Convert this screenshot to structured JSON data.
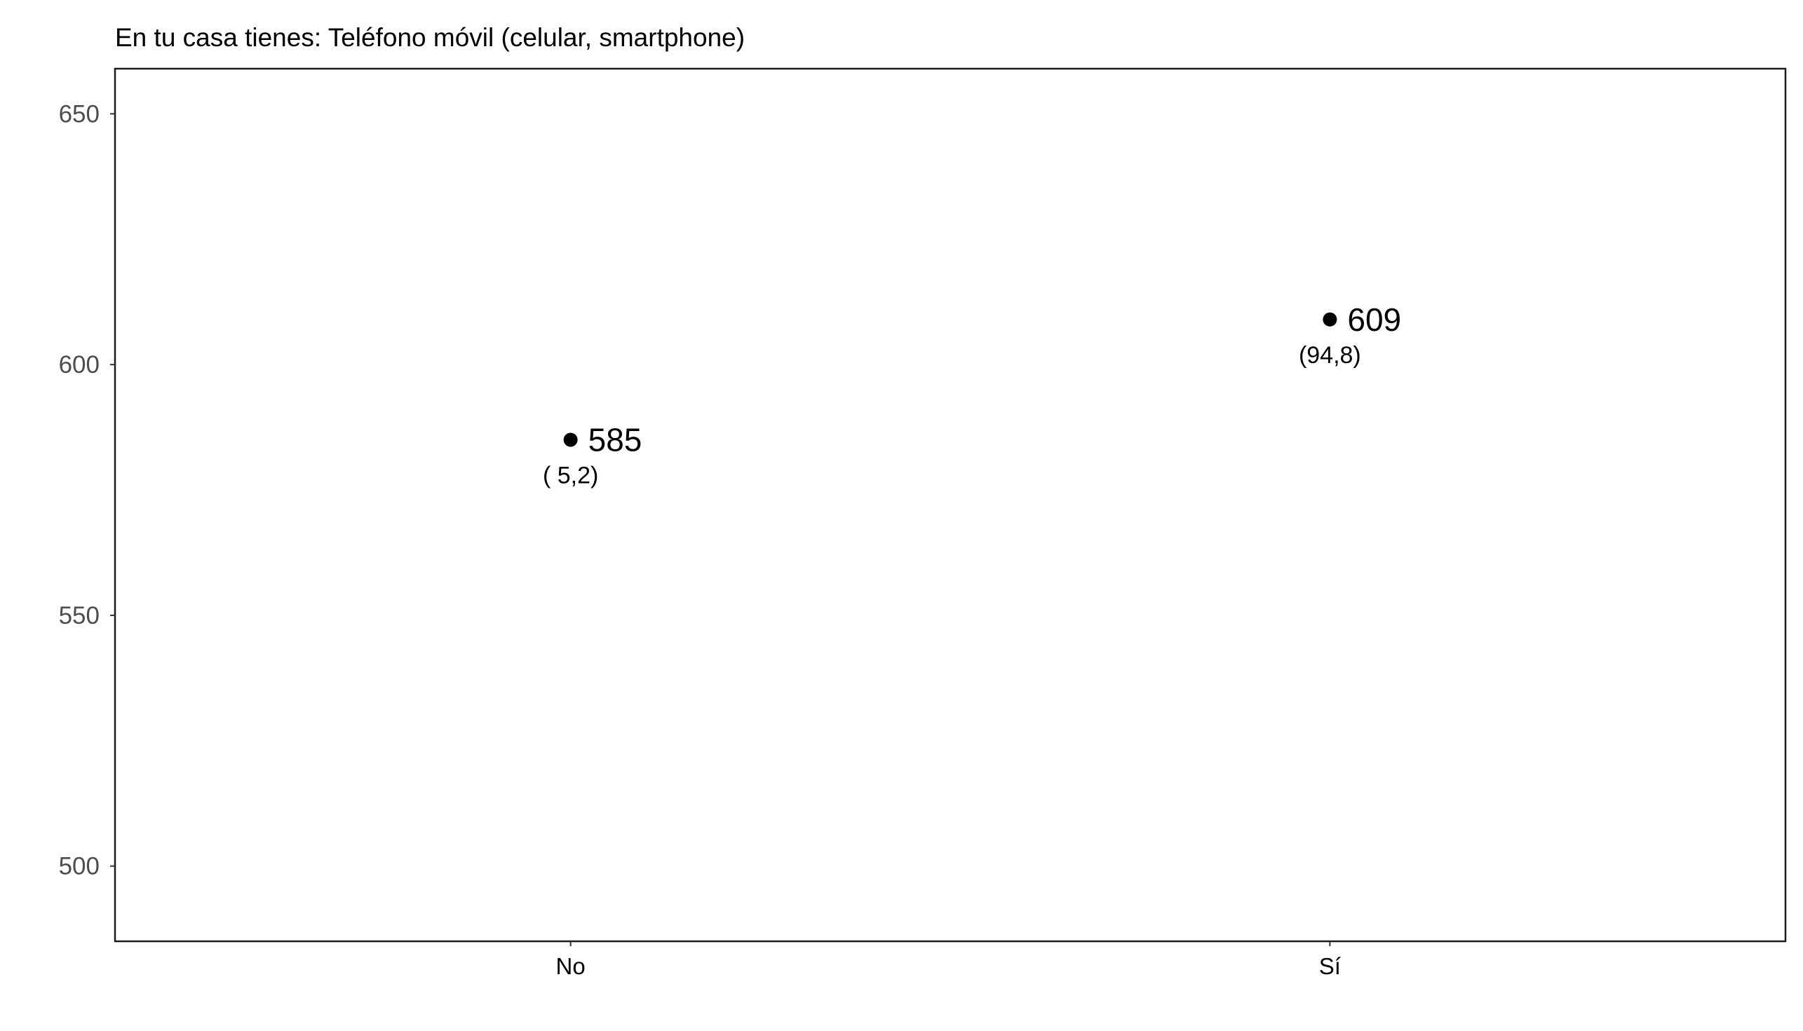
{
  "chart_data": {
    "type": "scatter",
    "title": "En tu casa tienes: Teléfono móvil (celular, smartphone)",
    "xlabel": "",
    "ylabel": "",
    "categories": [
      "No",
      "Sí"
    ],
    "values": [
      585,
      609
    ],
    "value_labels": [
      "585",
      "609"
    ],
    "percent_labels": [
      "( 5,2)",
      "(94,8)"
    ],
    "percent_values": [
      5.2,
      94.8
    ],
    "ylim": [
      485,
      659
    ],
    "yticks": [
      500,
      550,
      600,
      650
    ],
    "ytick_labels": [
      "500",
      "550",
      "600",
      "650"
    ],
    "grid": false,
    "legend": "none",
    "point_color": "#000000",
    "axis_text_color": "#4d4d4d"
  }
}
